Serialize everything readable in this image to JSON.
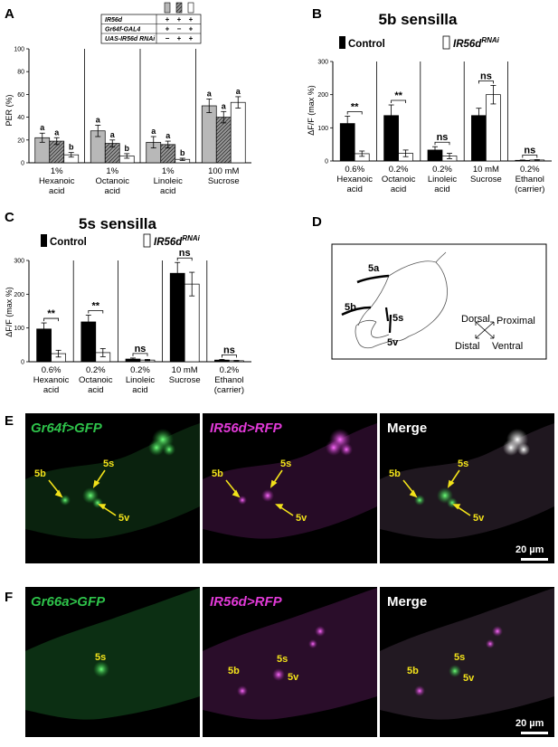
{
  "panels": {
    "A": {
      "label": "A",
      "ylabel": "PER (%)",
      "genotype_rows": [
        "IR56d",
        "Gr64f-GAL4",
        "UAS-IR56d RNAi"
      ],
      "genotype_signs": [
        [
          "+",
          "+",
          "+"
        ],
        [
          "+",
          "−",
          "+"
        ],
        [
          "−",
          "+",
          "+"
        ]
      ],
      "ticks": [
        "0",
        "20",
        "40",
        "60",
        "80",
        "100"
      ]
    },
    "B": {
      "label": "B",
      "title": "5b sensilla",
      "ylabel": "ΔF/F (max %)",
      "legend_control": "Control",
      "legend_rnai": "IR56d",
      "legend_rnai_sup": "RNAi",
      "ticks": [
        "0",
        "100",
        "200",
        "300"
      ]
    },
    "C": {
      "label": "C",
      "title": "5s sensilla",
      "ylabel": "ΔF/F (max %)",
      "legend_control": "Control",
      "legend_rnai": "IR56d",
      "legend_rnai_sup": "RNAi",
      "ticks": [
        "0",
        "100",
        "200",
        "300"
      ]
    },
    "D": {
      "label": "D",
      "cells": [
        "5a",
        "5b",
        "5s",
        "5v"
      ],
      "axes": {
        "dorsal": "Dorsal",
        "proximal": "Proximal",
        "distal": "Distal",
        "ventral": "Ventral"
      }
    },
    "E": {
      "label": "E",
      "channel1": "Gr64f>GFP",
      "channel2": "IR56d>RFP",
      "merge": "Merge",
      "cells": [
        "5b",
        "5s",
        "5v"
      ],
      "scale": "20 µm"
    },
    "F": {
      "label": "F",
      "channel1": "Gr66a>GFP",
      "channel2": "IR56d>RFP",
      "merge": "Merge",
      "cells_ch1": [
        "5s"
      ],
      "cells": [
        "5b",
        "5s",
        "5v"
      ],
      "scale": "20 µm"
    }
  },
  "chart_data": [
    {
      "panel": "A",
      "type": "bar",
      "ylabel": "PER (%)",
      "ylim": [
        0,
        100
      ],
      "categories": [
        "1% Hexanoic acid",
        "1% Octanoic acid",
        "1% Linoleic acid",
        "100 mM Sucrose"
      ],
      "category_lines": [
        [
          "1%",
          "Hexanoic",
          "acid"
        ],
        [
          "1%",
          "Octanoic",
          "acid"
        ],
        [
          "1%",
          "Linoleic",
          "acid"
        ],
        [
          "100 mM",
          "Sucrose"
        ]
      ],
      "series": [
        {
          "values": [
            22,
            28,
            18,
            50
          ],
          "errors": [
            4,
            5,
            5,
            6
          ],
          "letters": [
            "a",
            "a",
            "a",
            "a"
          ]
        },
        {
          "values": [
            19,
            17,
            16,
            40
          ],
          "errors": [
            3,
            3,
            3,
            5
          ],
          "letters": [
            "a",
            "a",
            "a",
            "a"
          ]
        },
        {
          "values": [
            7,
            6,
            3,
            53
          ],
          "errors": [
            2,
            2,
            1,
            5
          ],
          "letters": [
            "b",
            "b",
            "b",
            "a"
          ]
        }
      ]
    },
    {
      "panel": "B",
      "type": "bar",
      "title": "5b sensilla",
      "ylabel": "ΔF/F (max %)",
      "ylim": [
        0,
        300
      ],
      "categories": [
        "0.6% Hexanoic acid",
        "0.2% Octanoic acid",
        "0.2% Linoleic acid",
        "10 mM Sucrose",
        "0.2% Ethanol (carrier)"
      ],
      "category_lines": [
        [
          "0.6%",
          "Hexanoic",
          "acid"
        ],
        [
          "0.2%",
          "Octanoic",
          "acid"
        ],
        [
          "0.2%",
          "Linoleic",
          "acid"
        ],
        [
          "10 mM",
          "Sucrose"
        ],
        [
          "0.2%",
          "Ethanol",
          "(carrier)"
        ]
      ],
      "series": [
        {
          "name": "Control",
          "values": [
            113,
            137,
            33,
            137,
            2
          ],
          "errors": [
            22,
            32,
            10,
            22,
            1
          ]
        },
        {
          "name": "IR56dRNAi",
          "values": [
            22,
            23,
            15,
            200,
            3
          ],
          "errors": [
            8,
            10,
            8,
            28,
            1
          ]
        }
      ],
      "significance": [
        "**",
        "**",
        "ns",
        "ns",
        "ns"
      ]
    },
    {
      "panel": "C",
      "type": "bar",
      "title": "5s sensilla",
      "ylabel": "ΔF/F (max %)",
      "ylim": [
        0,
        300
      ],
      "categories": [
        "0.6% Hexanoic acid",
        "0.2% Octanoic acid",
        "0.2% Linoleic acid",
        "10 mM Sucrose",
        "0.2% Ethanol (carrier)"
      ],
      "category_lines": [
        [
          "0.6%",
          "Hexanoic",
          "acid"
        ],
        [
          "0.2%",
          "Octanoic",
          "acid"
        ],
        [
          "0.2%",
          "Linoleic",
          "acid"
        ],
        [
          "10 mM",
          "Sucrose"
        ],
        [
          "0.2%",
          "Ethanol",
          "(carrier)"
        ]
      ],
      "series": [
        {
          "name": "Control",
          "values": [
            97,
            118,
            8,
            262,
            5
          ],
          "errors": [
            18,
            20,
            3,
            32,
            2
          ]
        },
        {
          "name": "IR56dRNAi",
          "values": [
            24,
            27,
            5,
            230,
            3
          ],
          "errors": [
            10,
            12,
            2,
            35,
            1
          ]
        }
      ],
      "significance": [
        "**",
        "**",
        "ns",
        "ns",
        "ns"
      ]
    }
  ]
}
